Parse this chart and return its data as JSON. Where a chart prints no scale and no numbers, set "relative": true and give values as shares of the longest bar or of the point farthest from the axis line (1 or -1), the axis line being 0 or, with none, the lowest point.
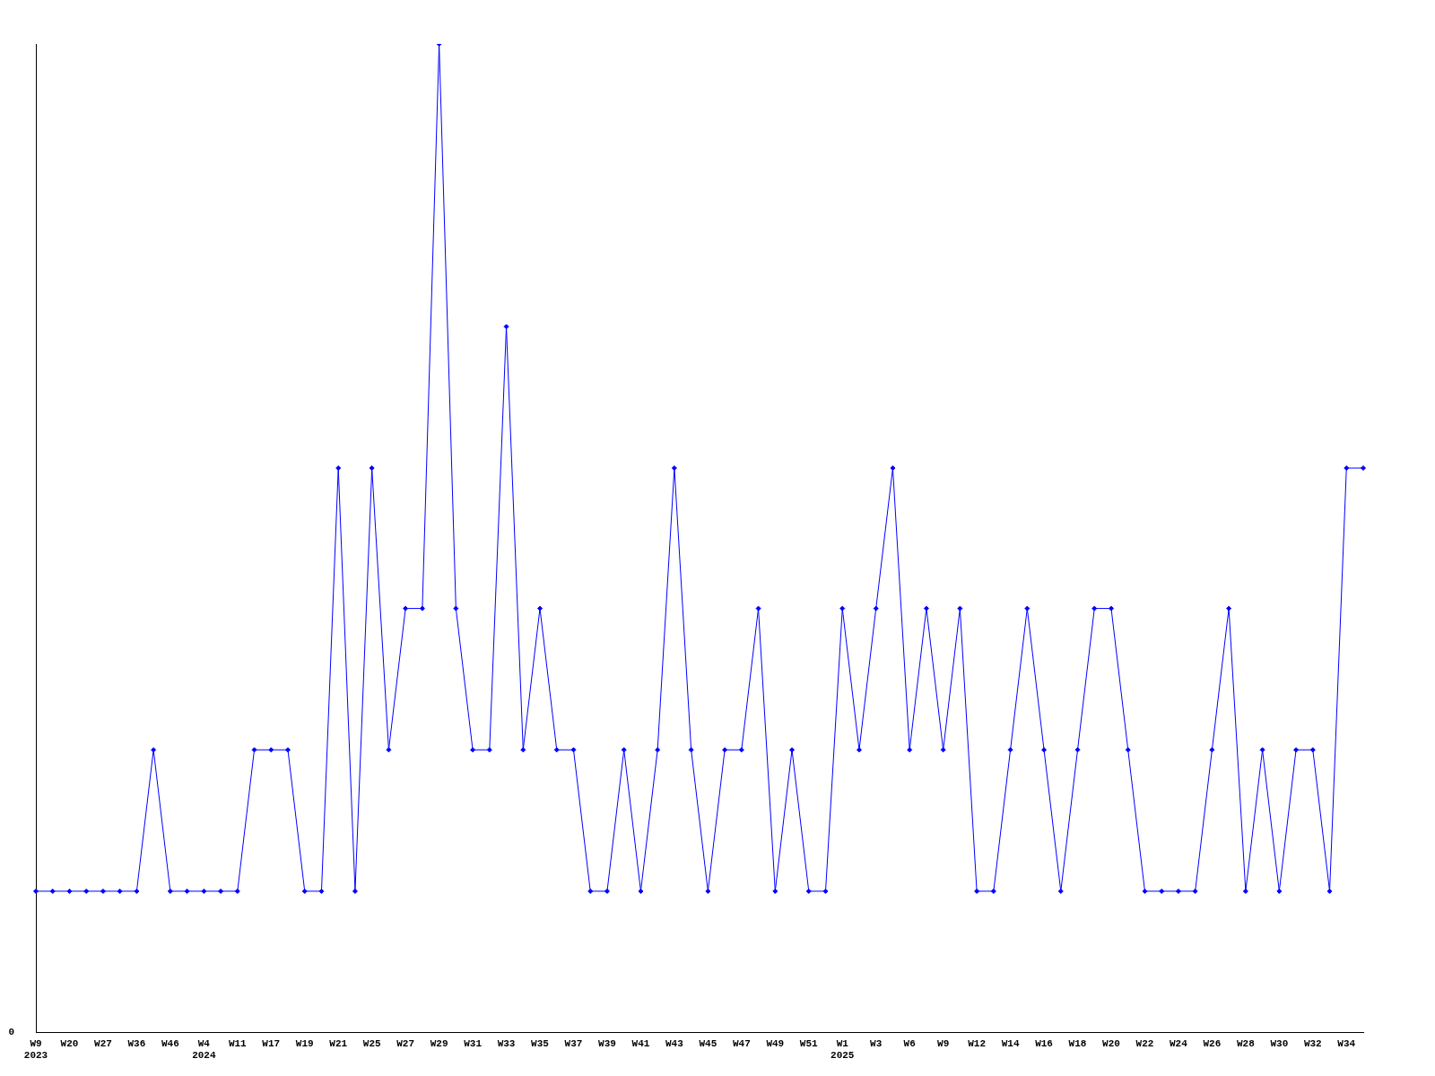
{
  "chart_data": {
    "type": "line",
    "relative": true,
    "categories": [
      "W9\n2023",
      null,
      "W20",
      null,
      "W27",
      null,
      "W36",
      null,
      "W46",
      null,
      "W4\n2024",
      null,
      "W11",
      null,
      "W17",
      null,
      "W19",
      null,
      "W21",
      null,
      "W25",
      null,
      "W27",
      null,
      "W29",
      null,
      "W31",
      null,
      "W33",
      null,
      "W35",
      null,
      "W37",
      null,
      "W39",
      null,
      "W41",
      null,
      "W43",
      null,
      "W45",
      null,
      "W47",
      null,
      "W49",
      null,
      "W51",
      null,
      "W1\n2025",
      null,
      "W3",
      null,
      "W6",
      null,
      "W9",
      null,
      "W12",
      null,
      "W14",
      null,
      "W16",
      null,
      "W18",
      null,
      "W20",
      null,
      "W22",
      null,
      "W24",
      null,
      "W26",
      null,
      "W28",
      null,
      "W30",
      null,
      "W32",
      null,
      "W34",
      null
    ],
    "series": [
      {
        "color": "#0000ff",
        "values": [
          0.143,
          0.143,
          0.143,
          0.143,
          0.143,
          0.143,
          0.143,
          0.286,
          0.143,
          0.143,
          0.143,
          0.143,
          0.143,
          0.286,
          0.286,
          0.286,
          0.143,
          0.143,
          0.571,
          0.143,
          0.571,
          0.286,
          0.429,
          0.429,
          1,
          0.429,
          0.286,
          0.286,
          0.714,
          0.286,
          0.429,
          0.286,
          0.286,
          0.143,
          0.143,
          0.286,
          0.143,
          0.286,
          0.571,
          0.286,
          0.143,
          0.286,
          0.286,
          0.429,
          0.143,
          0.286,
          0.143,
          0.143,
          0.429,
          0.286,
          0.429,
          0.571,
          0.286,
          0.429,
          0.286,
          0.429,
          0.143,
          0.143,
          0.286,
          0.429,
          0.286,
          0.143,
          0.286,
          0.429,
          0.429,
          0.286,
          0.143,
          0.143,
          0.143,
          0.143,
          0.286,
          0.429,
          0.143,
          0.286,
          0.143,
          0.286,
          0.286,
          0.143,
          0.571,
          0.571
        ]
      }
    ],
    "marker": "diamond",
    "grid": false,
    "legend": false,
    "annotations": [
      "0"
    ]
  }
}
